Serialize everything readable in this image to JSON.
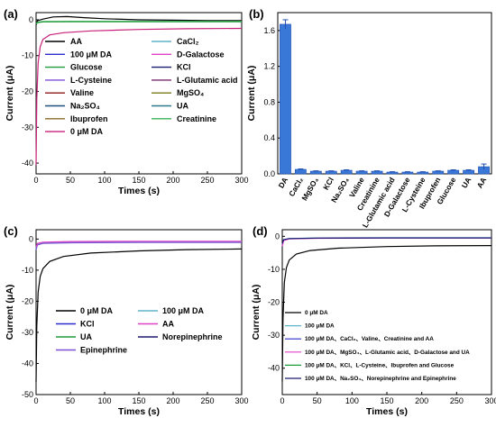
{
  "chart_data": [
    {
      "panel": "(a)",
      "type": "line",
      "xlabel": "Times (s)",
      "ylabel": "Current (μA)",
      "xlim": [
        0,
        300
      ],
      "ylim": [
        -43,
        2
      ],
      "xticks": [
        "0",
        "50",
        "100",
        "150",
        "200",
        "250",
        "300"
      ],
      "yticks": [
        "0",
        "-10",
        "-20",
        "-30",
        "-40"
      ],
      "legend": [
        {
          "name": "AA",
          "color": "#000000"
        },
        {
          "name": "CaCl₂",
          "color": "#5fb4c9"
        },
        {
          "name": "100 μM DA",
          "color": "#2b2bcf"
        },
        {
          "name": "D-Galactose",
          "color": "#e040c8"
        },
        {
          "name": "Glucose",
          "color": "#1f9a3a"
        },
        {
          "name": "KCl",
          "color": "#1a1a6e"
        },
        {
          "name": "L-Cysteine",
          "color": "#7b4fd6"
        },
        {
          "name": "L-Glutamic acid",
          "color": "#7a2a6a"
        },
        {
          "name": "Valine",
          "color": "#8b1a1a"
        },
        {
          "name": "MgSO₄",
          "color": "#7a7a1a"
        },
        {
          "name": "Na₂SO₄",
          "color": "#1f4f7a"
        },
        {
          "name": "UA",
          "color": "#2a7a8a"
        },
        {
          "name": "Ibuprofen",
          "color": "#8a6a2a"
        },
        {
          "name": "Creatinine",
          "color": "#3ab35a"
        },
        {
          "name": "0 μM DA",
          "color": "#c8207a"
        }
      ],
      "series": [
        {
          "name": "0 μM DA",
          "color": "#c8207a",
          "x": [
            0,
            1,
            3,
            6,
            10,
            20,
            40,
            80,
            150,
            220,
            300
          ],
          "y": [
            -40.5,
            -22,
            -12,
            -7.5,
            -5.5,
            -4.2,
            -3.6,
            -3.1,
            -2.7,
            -2.5,
            -2.4
          ]
        },
        {
          "name": "AA",
          "color": "#000000",
          "x": [
            0,
            2,
            10,
            25,
            45,
            70,
            100,
            150,
            200,
            250,
            300
          ],
          "y": [
            -1.5,
            -0.3,
            0.2,
            0.8,
            0.9,
            0.6,
            0.3,
            0.0,
            -0.1,
            -0.2,
            -0.2
          ]
        },
        {
          "name": "Creatinine",
          "color": "#3ab35a",
          "x": [
            0,
            2,
            10,
            50,
            100,
            200,
            300
          ],
          "y": [
            -1.0,
            -0.7,
            -0.5,
            -0.45,
            -0.45,
            -0.45,
            -0.45
          ]
        },
        {
          "name": "Glucose",
          "color": "#1f9a3a",
          "x": [
            0,
            2,
            10,
            50,
            100,
            200,
            300
          ],
          "y": [
            -1.2,
            -0.8,
            -0.6,
            -0.55,
            -0.55,
            -0.55,
            -0.55
          ]
        }
      ]
    },
    {
      "panel": "(b)",
      "type": "bar",
      "ylabel": "Current (μA)",
      "ylim": [
        0,
        1.8
      ],
      "yticks": [
        "0.0",
        "0.4",
        "0.8",
        "1.2",
        "1.6"
      ],
      "categories": [
        "DA",
        "CaCl₂",
        "MgSO₄",
        "KCl",
        "Na₂SO₄",
        "Valine",
        "Creatinine",
        "L-Glutamic acid",
        "D-Galactose",
        "L-Cysteine",
        "Ibuprofen",
        "Glucose",
        "UA",
        "AA"
      ],
      "values": [
        1.67,
        0.05,
        0.03,
        0.03,
        0.04,
        0.03,
        0.03,
        0.02,
        0.02,
        0.02,
        0.03,
        0.04,
        0.04,
        0.08
      ],
      "errors": [
        0.05,
        0.005,
        0.004,
        0.004,
        0.005,
        0.004,
        0.004,
        0.004,
        0.004,
        0.004,
        0.004,
        0.005,
        0.005,
        0.03
      ],
      "color": "#3a78d8"
    },
    {
      "panel": "(c)",
      "type": "line",
      "xlabel": "Times (s)",
      "ylabel": "Current (μA)",
      "xlim": [
        0,
        300
      ],
      "ylim": [
        -50,
        3
      ],
      "xticks": [
        "0",
        "50",
        "100",
        "150",
        "200",
        "250",
        "300"
      ],
      "yticks": [
        "0",
        "-10",
        "-20",
        "-30",
        "-40",
        "-50"
      ],
      "legend": [
        {
          "name": "0 μM DA",
          "color": "#000000"
        },
        {
          "name": "100 μM DA",
          "color": "#5fb4c9"
        },
        {
          "name": "KCl",
          "color": "#2b2bcf"
        },
        {
          "name": "AA",
          "color": "#e040c8"
        },
        {
          "name": "UA",
          "color": "#1f9a3a"
        },
        {
          "name": "Norepinephrine",
          "color": "#1a1a6e"
        },
        {
          "name": "Epinephrine",
          "color": "#7b4fd6"
        }
      ],
      "series": [
        {
          "name": "0 μM DA",
          "color": "#000000",
          "x": [
            0,
            1,
            3,
            6,
            10,
            20,
            40,
            80,
            150,
            220,
            300
          ],
          "y": [
            -46,
            -28,
            -17,
            -12,
            -9.5,
            -7.2,
            -5.6,
            -4.5,
            -3.8,
            -3.4,
            -3.2
          ]
        },
        {
          "name": "100 μM DA",
          "color": "#5fb4c9",
          "x": [
            0,
            2,
            10,
            50,
            150,
            300
          ],
          "y": [
            -3,
            -1.6,
            -1.2,
            -1.0,
            -0.9,
            -0.9
          ]
        },
        {
          "name": "Epinephrine",
          "color": "#7b4fd6",
          "x": [
            0,
            2,
            10,
            50,
            150,
            300
          ],
          "y": [
            -3.5,
            -1.9,
            -1.4,
            -1.2,
            -1.1,
            -1.1
          ]
        },
        {
          "name": "AA",
          "color": "#e040c8",
          "x": [
            0,
            2,
            10,
            50,
            150,
            300
          ],
          "y": [
            -2.5,
            -1.4,
            -1.0,
            -0.8,
            -0.7,
            -0.7
          ]
        }
      ]
    },
    {
      "panel": "(d)",
      "type": "line",
      "xlabel": "Times (s)",
      "ylabel": "Current (μA)",
      "xlim": [
        0,
        300
      ],
      "ylim": [
        -48,
        2
      ],
      "xticks": [
        "0",
        "50",
        "100",
        "150",
        "200",
        "250",
        "300"
      ],
      "yticks": [
        "0",
        "-10",
        "-20",
        "-30",
        "-40"
      ],
      "legend": [
        {
          "name": "0 μM DA",
          "color": "#000000"
        },
        {
          "name": "100 μM DA",
          "color": "#5fb4c9"
        },
        {
          "name": "100 μM DA、CaCl₂、Valine、Creatinine and AA",
          "color": "#2b2bcf"
        },
        {
          "name": "100 μM DA、MgSO₄、L-Glutamic acid、D-Galactose and UA",
          "color": "#e040c8"
        },
        {
          "name": "100 μM DA、KCl、L-Cysteine、Ibuprofen and Glucose",
          "color": "#1f9a3a"
        },
        {
          "name": "100 μM DA、Na₂SO₄、Norepinephrine and Epinephrine",
          "color": "#1a1a6e"
        }
      ],
      "series": [
        {
          "name": "0 μM DA",
          "color": "#000000",
          "x": [
            0,
            1,
            3,
            6,
            10,
            20,
            40,
            80,
            150,
            220,
            300
          ],
          "y": [
            -44,
            -25,
            -14,
            -9.5,
            -7.2,
            -5.4,
            -4.3,
            -3.6,
            -3.1,
            -2.9,
            -2.8
          ]
        },
        {
          "name": "100 μM DA",
          "color": "#5fb4c9",
          "x": [
            0,
            2,
            10,
            50,
            150,
            300
          ],
          "y": [
            -2.5,
            -1.1,
            -0.7,
            -0.5,
            -0.4,
            -0.4
          ]
        },
        {
          "name": "100 μM DA、MgSO₄、L-Glutamic acid、D-Galactose and UA",
          "color": "#e040c8",
          "x": [
            0,
            2,
            10,
            50,
            150,
            300
          ],
          "y": [
            -3,
            -1.3,
            -0.8,
            -0.6,
            -0.5,
            -0.5
          ]
        },
        {
          "name": "100 μM DA、Na₂SO₄、Norepinephrine and Epinephrine",
          "color": "#1a1a6e",
          "x": [
            0,
            2,
            10,
            50,
            150,
            300
          ],
          "y": [
            -2.2,
            -1.0,
            -0.7,
            -0.55,
            -0.5,
            -0.5
          ]
        }
      ]
    }
  ]
}
